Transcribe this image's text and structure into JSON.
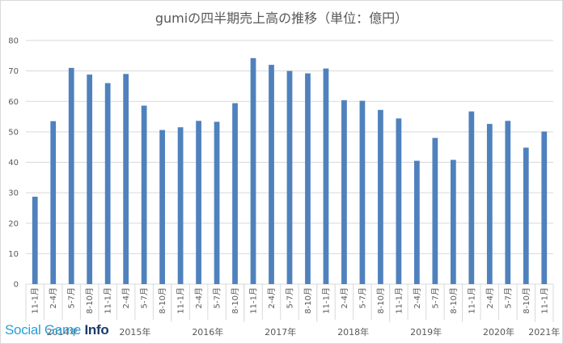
{
  "chart_data": {
    "type": "bar",
    "title": "gumiの四半期売上高の推移（単位：億円）",
    "ylim": [
      0,
      80
    ],
    "yticks": [
      0,
      10,
      20,
      30,
      40,
      50,
      60,
      70,
      80
    ],
    "grid": true,
    "bar_color": "#4f81bd",
    "categories": [
      "11-1月",
      "2-4月",
      "5-7月",
      "8-10月",
      "11-1月",
      "2-4月",
      "5-7月",
      "8-10月",
      "11-1月",
      "2-4月",
      "5-7月",
      "8-10月",
      "11-1月",
      "2-4月",
      "5-7月",
      "8-10月",
      "11-1月",
      "2-4月",
      "5-7月",
      "8-10月",
      "11-1月",
      "2-4月",
      "5-7月",
      "8-10月",
      "11-1月",
      "2-4月",
      "5-7月",
      "8-10月",
      "11-1月"
    ],
    "values": [
      28.7,
      53.5,
      71.0,
      68.8,
      66.0,
      69.0,
      58.6,
      50.6,
      51.5,
      53.6,
      53.3,
      59.4,
      74.2,
      72.0,
      70.0,
      69.2,
      70.8,
      60.4,
      60.2,
      57.2,
      54.4,
      40.5,
      48.0,
      40.8,
      56.7,
      52.6,
      53.6,
      44.8,
      50.1
    ],
    "year_groups": [
      {
        "label": "2014年",
        "start": 0,
        "count": 4
      },
      {
        "label": "2015年",
        "start": 4,
        "count": 4
      },
      {
        "label": "2016年",
        "start": 8,
        "count": 4
      },
      {
        "label": "2017年",
        "start": 12,
        "count": 4
      },
      {
        "label": "2018年",
        "start": 16,
        "count": 4
      },
      {
        "label": "2019年",
        "start": 20,
        "count": 4
      },
      {
        "label": "2020年",
        "start": 24,
        "count": 4
      },
      {
        "label": "2021年",
        "start": 28,
        "count": 1
      }
    ]
  },
  "watermark": {
    "prefix": "Social Game ",
    "suffix": "Info"
  }
}
